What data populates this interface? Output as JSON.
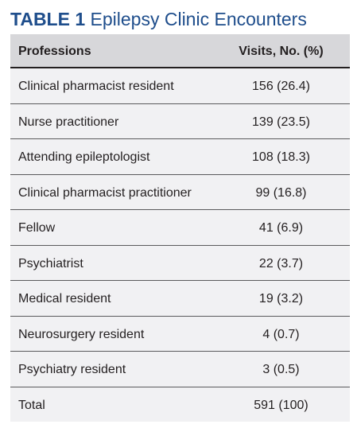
{
  "title": {
    "label": "TABLE 1",
    "text": "Epilepsy Clinic Encounters"
  },
  "table": {
    "headers": [
      "Professions",
      "Visits, No. (%)"
    ],
    "rows": [
      [
        "Clinical pharmacist resident",
        "156 (26.4)"
      ],
      [
        "Nurse practitioner",
        "139 (23.5)"
      ],
      [
        "Attending epileptologist",
        "108 (18.3)"
      ],
      [
        "Clinical pharmacist practitioner",
        "99 (16.8)"
      ],
      [
        "Fellow",
        "41 (6.9)"
      ],
      [
        "Psychiatrist",
        "22 (3.7)"
      ],
      [
        "Medical resident",
        "19 (3.2)"
      ],
      [
        "Neurosurgery resident",
        "4 (0.7)"
      ],
      [
        "Psychiatry resident",
        "3 (0.5)"
      ],
      [
        "Total",
        "591 (100)"
      ]
    ]
  },
  "colors": {
    "title": "#1f4e8c",
    "header_bg": "#d7d7da",
    "body_bg": "#f1f1f3",
    "text": "#231f20"
  }
}
